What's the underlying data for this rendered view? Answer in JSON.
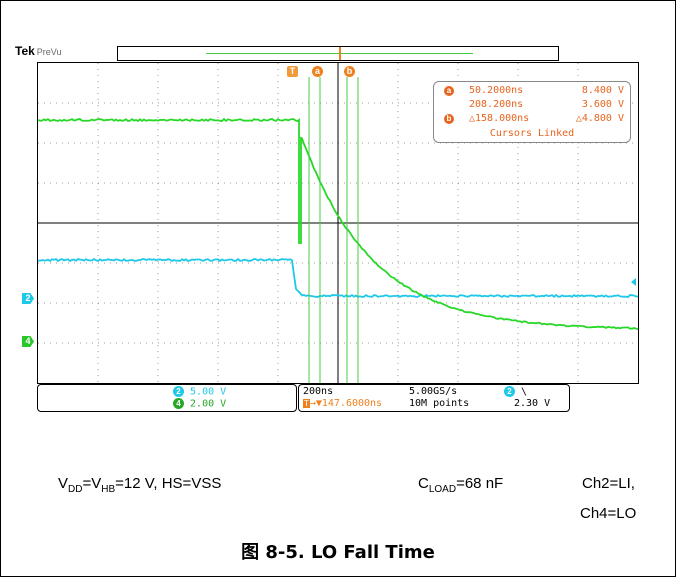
{
  "scope": {
    "brand": "Tek",
    "mode": "PreVu",
    "trigger_marker": "T",
    "cursor_a_marker": "a",
    "cursor_b_marker": "b",
    "readout": {
      "a_time": "50.2000ns",
      "a_volt": "8.400 V",
      "b_time": "208.200ns",
      "b_volt": "3.600 V",
      "delta_time": "△158.000ns",
      "delta_volt": "△4.800 V",
      "linked": "Cursors Linked"
    },
    "channels": [
      {
        "id": "2",
        "scale": "5.00 V",
        "color": "#1ec8e8"
      },
      {
        "id": "4",
        "scale": "2.00 V",
        "color": "#28c828"
      }
    ],
    "timebase": "200ns",
    "trigger_delay": "147.6000ns",
    "sample_rate": "5.00GS/s",
    "record_length": "10M points",
    "trigger_channel": "2",
    "trigger_slope": "\\",
    "trigger_level": "2.30 V",
    "colors": {
      "ch2": "#1ec8e8",
      "ch4": "#28d828",
      "cursor": "#44cc44",
      "accent": "#f0801e"
    }
  },
  "caption": {
    "vdd_a": "V",
    "vdd_sub_a": "DD",
    "vdd_b": "=V",
    "vdd_sub_b": "HB",
    "vdd_rest": "=12 V, HS=VSS",
    "cload_a": "C",
    "cload_sub": "LOAD",
    "cload_rest": "=68 nF",
    "ch2": "Ch2=LI,",
    "ch4": "Ch4=LO",
    "figure": "图 8-5. LO Fall Time"
  }
}
